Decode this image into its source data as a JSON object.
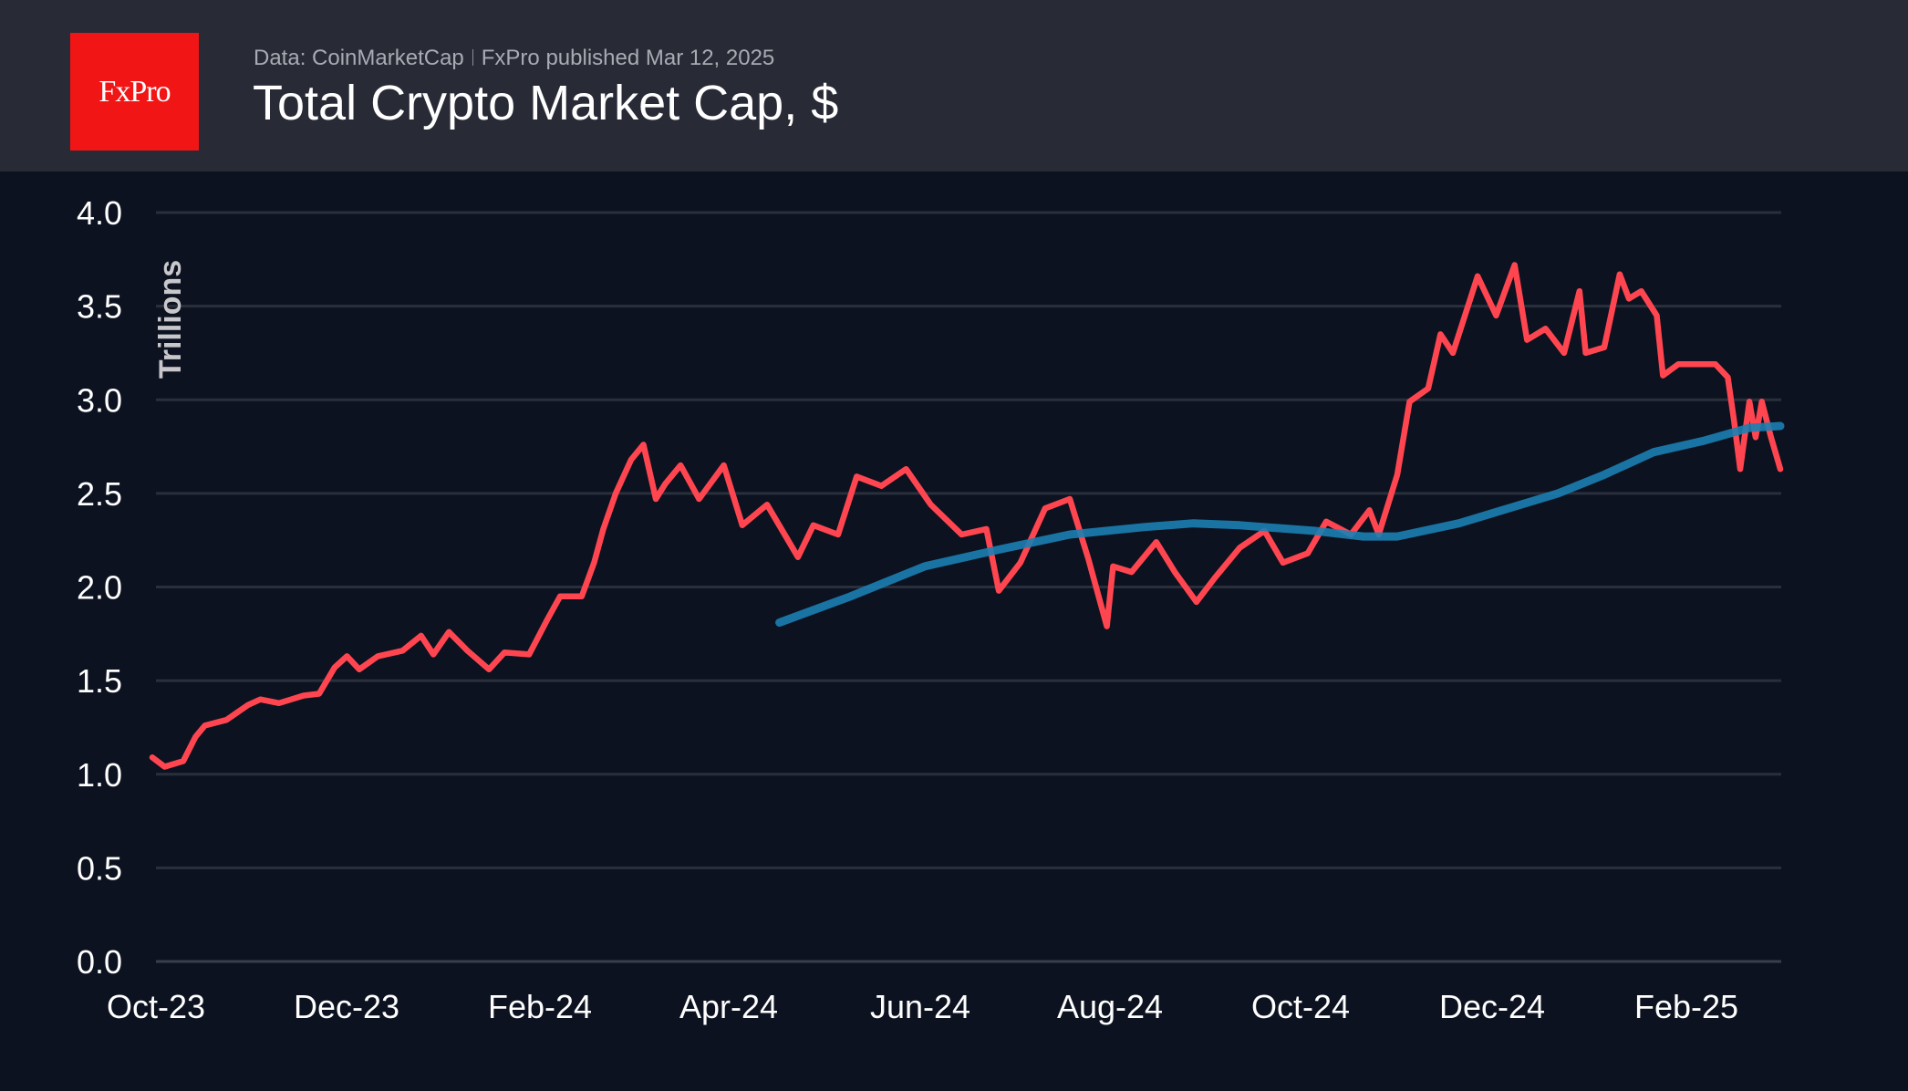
{
  "header": {
    "logo_text": "FxPro",
    "source": "Data: CoinMarketCap",
    "publisher": "FxPro published Mar 12, 2025",
    "title": "Total Crypto Market Cap, $"
  },
  "colors": {
    "background": "#0c1220",
    "header": "#282a36",
    "logo": "#f21515",
    "market_cap": "#ff4650",
    "moving_average": "#1b80b2",
    "grid": "#2a2f3c"
  },
  "chart_data": {
    "type": "line",
    "title": "Total Crypto Market Cap, $",
    "ylabel": "Trillions",
    "xlabel": "",
    "ylim": [
      0,
      4.0
    ],
    "yticks": [
      "0.0",
      "0.5",
      "1.0",
      "1.5",
      "2.0",
      "2.5",
      "3.0",
      "3.5",
      "4.0"
    ],
    "xticks": [
      "Oct-23",
      "Dec-23",
      "Feb-24",
      "Apr-24",
      "Jun-24",
      "Aug-24",
      "Oct-24",
      "Dec-24",
      "Feb-25"
    ],
    "xlim": [
      "2023-10-01",
      "2025-03-11"
    ],
    "grid": "horizontal",
    "series": [
      {
        "key": "market_cap",
        "color": "#ff4650",
        "points": [
          [
            "2023-10-01",
            1.09
          ],
          [
            "2023-10-05",
            1.04
          ],
          [
            "2023-10-11",
            1.07
          ],
          [
            "2023-10-15",
            1.2
          ],
          [
            "2023-10-18",
            1.26
          ],
          [
            "2023-10-25",
            1.29
          ],
          [
            "2023-11-01",
            1.37
          ],
          [
            "2023-11-05",
            1.4
          ],
          [
            "2023-11-11",
            1.38
          ],
          [
            "2023-11-19",
            1.42
          ],
          [
            "2023-11-24",
            1.43
          ],
          [
            "2023-11-29",
            1.57
          ],
          [
            "2023-12-03",
            1.63
          ],
          [
            "2023-12-07",
            1.56
          ],
          [
            "2023-12-13",
            1.63
          ],
          [
            "2023-12-21",
            1.66
          ],
          [
            "2023-12-27",
            1.74
          ],
          [
            "2023-12-31",
            1.64
          ],
          [
            "2024-01-05",
            1.76
          ],
          [
            "2024-01-11",
            1.66
          ],
          [
            "2024-01-18",
            1.56
          ],
          [
            "2024-01-23",
            1.65
          ],
          [
            "2024-01-31",
            1.64
          ],
          [
            "2024-02-06",
            1.83
          ],
          [
            "2024-02-10",
            1.95
          ],
          [
            "2024-02-17",
            1.95
          ],
          [
            "2024-02-21",
            2.13
          ],
          [
            "2024-02-24",
            2.31
          ],
          [
            "2024-02-28",
            2.5
          ],
          [
            "2024-03-04",
            2.68
          ],
          [
            "2024-03-08",
            2.76
          ],
          [
            "2024-03-12",
            2.47
          ],
          [
            "2024-03-15",
            2.55
          ],
          [
            "2024-03-20",
            2.65
          ],
          [
            "2024-03-26",
            2.47
          ],
          [
            "2024-04-03",
            2.65
          ],
          [
            "2024-04-09",
            2.33
          ],
          [
            "2024-04-17",
            2.44
          ],
          [
            "2024-04-27",
            2.16
          ],
          [
            "2024-05-02",
            2.33
          ],
          [
            "2024-05-10",
            2.28
          ],
          [
            "2024-05-16",
            2.59
          ],
          [
            "2024-05-24",
            2.54
          ],
          [
            "2024-06-01",
            2.63
          ],
          [
            "2024-06-09",
            2.44
          ],
          [
            "2024-06-19",
            2.28
          ],
          [
            "2024-06-27",
            2.31
          ],
          [
            "2024-07-01",
            1.98
          ],
          [
            "2024-07-08",
            2.13
          ],
          [
            "2024-07-16",
            2.42
          ],
          [
            "2024-07-24",
            2.47
          ],
          [
            "2024-07-30",
            2.15
          ],
          [
            "2024-08-05",
            1.79
          ],
          [
            "2024-08-07",
            2.11
          ],
          [
            "2024-08-13",
            2.08
          ],
          [
            "2024-08-21",
            2.24
          ],
          [
            "2024-08-27",
            2.08
          ],
          [
            "2024-09-03",
            1.92
          ],
          [
            "2024-09-09",
            2.05
          ],
          [
            "2024-09-17",
            2.21
          ],
          [
            "2024-09-25",
            2.3
          ],
          [
            "2024-10-01",
            2.13
          ],
          [
            "2024-10-09",
            2.18
          ],
          [
            "2024-10-15",
            2.35
          ],
          [
            "2024-10-23",
            2.28
          ],
          [
            "2024-10-29",
            2.41
          ],
          [
            "2024-11-01",
            2.28
          ],
          [
            "2024-11-07",
            2.6
          ],
          [
            "2024-11-11",
            2.99
          ],
          [
            "2024-11-17",
            3.06
          ],
          [
            "2024-11-21",
            3.35
          ],
          [
            "2024-11-25",
            3.25
          ],
          [
            "2024-12-03",
            3.66
          ],
          [
            "2024-12-09",
            3.45
          ],
          [
            "2024-12-15",
            3.72
          ],
          [
            "2024-12-19",
            3.32
          ],
          [
            "2024-12-25",
            3.38
          ],
          [
            "2024-12-31",
            3.25
          ],
          [
            "2025-01-05",
            3.58
          ],
          [
            "2025-01-07",
            3.25
          ],
          [
            "2025-01-13",
            3.28
          ],
          [
            "2025-01-18",
            3.67
          ],
          [
            "2025-01-21",
            3.54
          ],
          [
            "2025-01-25",
            3.58
          ],
          [
            "2025-01-30",
            3.45
          ],
          [
            "2025-02-01",
            3.13
          ],
          [
            "2025-02-06",
            3.19
          ],
          [
            "2025-02-12",
            3.19
          ],
          [
            "2025-02-18",
            3.19
          ],
          [
            "2025-02-22",
            3.12
          ],
          [
            "2025-02-24",
            2.89
          ],
          [
            "2025-02-26",
            2.63
          ],
          [
            "2025-03-01",
            2.99
          ],
          [
            "2025-03-03",
            2.8
          ],
          [
            "2025-03-05",
            2.99
          ],
          [
            "2025-03-08",
            2.8
          ],
          [
            "2025-03-11",
            2.63
          ]
        ]
      },
      {
        "key": "moving_average",
        "color": "#1b80b2",
        "points": [
          [
            "2024-04-21",
            1.81
          ],
          [
            "2024-05-14",
            1.95
          ],
          [
            "2024-06-07",
            2.11
          ],
          [
            "2024-07-01",
            2.2
          ],
          [
            "2024-07-24",
            2.28
          ],
          [
            "2024-08-17",
            2.32
          ],
          [
            "2024-09-02",
            2.34
          ],
          [
            "2024-09-17",
            2.33
          ],
          [
            "2024-10-11",
            2.3
          ],
          [
            "2024-10-27",
            2.27
          ],
          [
            "2024-11-07",
            2.27
          ],
          [
            "2024-11-27",
            2.34
          ],
          [
            "2024-12-13",
            2.42
          ],
          [
            "2024-12-29",
            2.5
          ],
          [
            "2025-01-13",
            2.6
          ],
          [
            "2025-01-29",
            2.72
          ],
          [
            "2025-02-14",
            2.78
          ],
          [
            "2025-03-01",
            2.85
          ],
          [
            "2025-03-11",
            2.86
          ]
        ]
      }
    ]
  }
}
